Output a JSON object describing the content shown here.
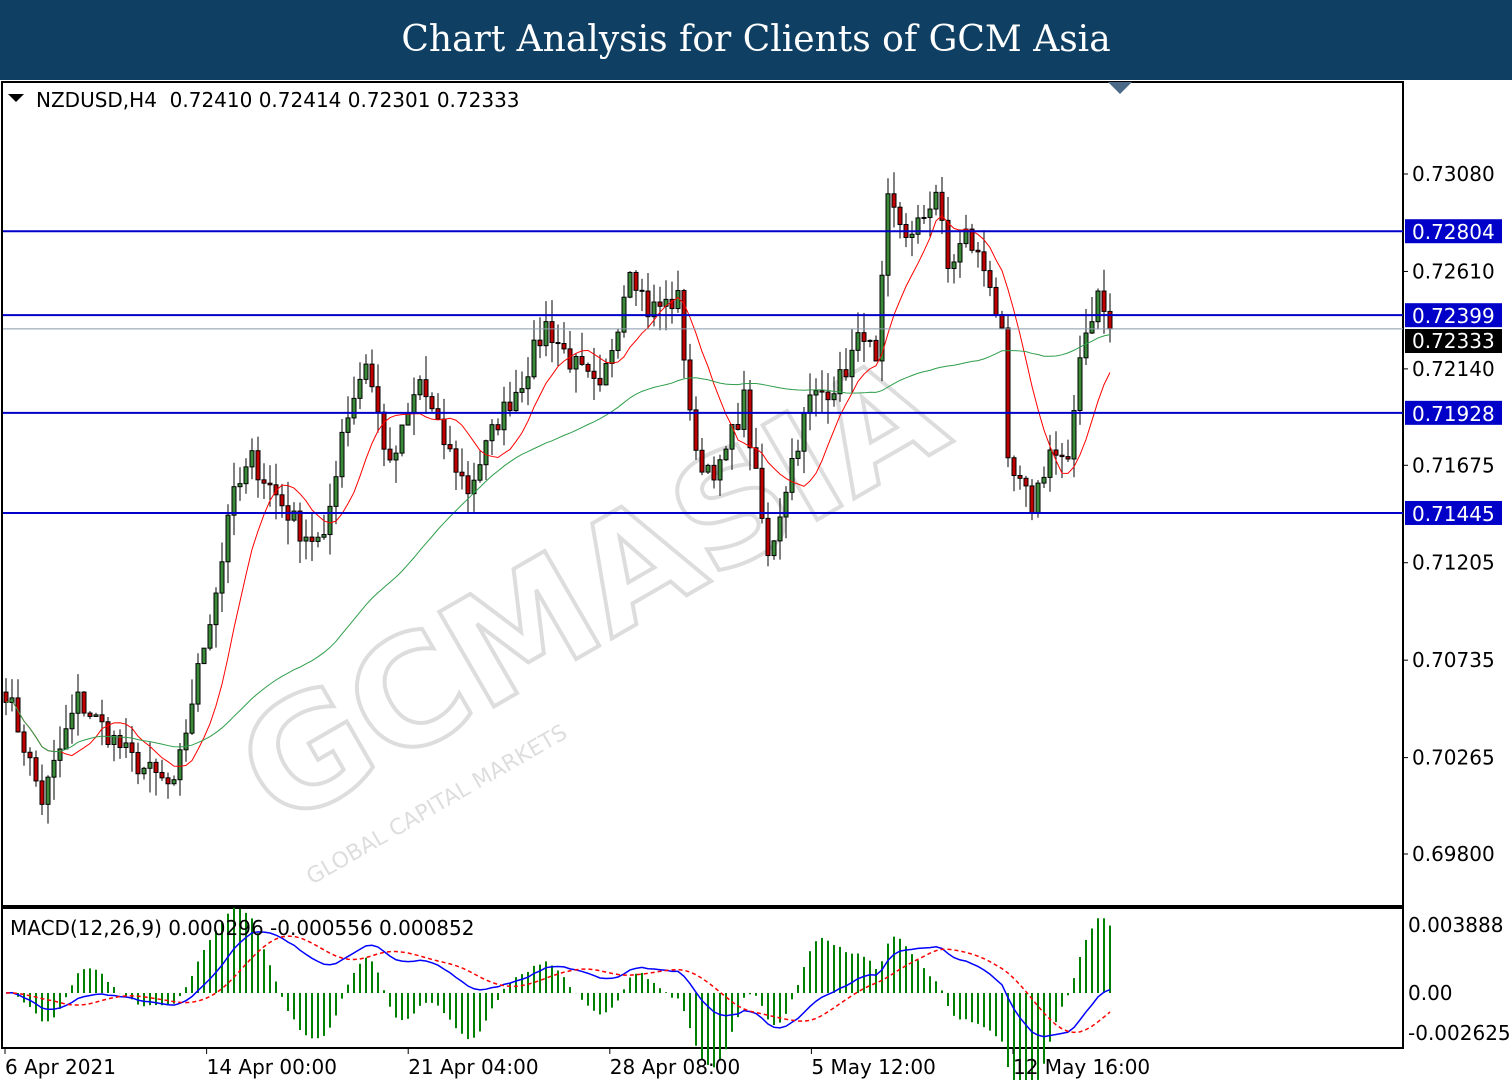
{
  "header": {
    "title": "Chart Analysis for Clients of GCM Asia"
  },
  "watermark": {
    "logo_text": "GCMASIA",
    "logo_sub": "GLOBAL CAPITAL MARKETS"
  },
  "chart_data": [
    {
      "type": "candlestick",
      "symbol_info": "NZDUSD,H4  0.72410 0.72414 0.72301 0.72333",
      "ylim": [
        0.696,
        0.7328
      ],
      "y_ticks": [
        "0.73080",
        "0.72610",
        "0.72140",
        "0.71675",
        "0.71205",
        "0.70735",
        "0.70265",
        "0.69800"
      ],
      "x_ticks": [
        "6 Apr 2021",
        "14 Apr 00:00",
        "21 Apr 04:00",
        "28 Apr 08:00",
        "5 May 12:00",
        "12 May 16:00"
      ],
      "grid": false,
      "current_price": "0.72333",
      "horizontal_levels": [
        {
          "value": "0.72804"
        },
        {
          "value": "0.72399"
        },
        {
          "value": "0.71928"
        },
        {
          "value": "0.71445"
        }
      ],
      "close_keyframes": [
        [
          0,
          0.70591
        ],
        [
          6,
          0.7006
        ],
        [
          12,
          0.70543
        ],
        [
          21,
          0.70253
        ],
        [
          28,
          0.70109
        ],
        [
          31,
          0.70543
        ],
        [
          36,
          0.71218
        ],
        [
          37,
          0.71459
        ],
        [
          41,
          0.717
        ],
        [
          49,
          0.71363
        ],
        [
          53,
          0.7129
        ],
        [
          56,
          0.71845
        ],
        [
          60,
          0.72183
        ],
        [
          64,
          0.71652
        ],
        [
          69,
          0.72086
        ],
        [
          72,
          0.71845
        ],
        [
          77,
          0.71556
        ],
        [
          82,
          0.71893
        ],
        [
          86,
          0.72086
        ],
        [
          90,
          0.72352
        ],
        [
          94,
          0.72183
        ],
        [
          99,
          0.72014
        ],
        [
          102,
          0.72376
        ],
        [
          104,
          0.72656
        ],
        [
          107,
          0.72424
        ],
        [
          112,
          0.72472
        ],
        [
          115,
          0.717
        ],
        [
          119,
          0.71652
        ],
        [
          123,
          0.7199
        ],
        [
          127,
          0.71218
        ],
        [
          131,
          0.717
        ],
        [
          134,
          0.7199
        ],
        [
          139,
          0.72086
        ],
        [
          143,
          0.72328
        ],
        [
          145,
          0.72135
        ],
        [
          147,
          0.7293
        ],
        [
          151,
          0.72762
        ],
        [
          155,
          0.73003
        ],
        [
          157,
          0.72617
        ],
        [
          160,
          0.72786
        ],
        [
          164,
          0.72569
        ],
        [
          166,
          0.72279
        ],
        [
          167,
          0.71652
        ],
        [
          171,
          0.71483
        ],
        [
          174,
          0.71749
        ],
        [
          177,
          0.71652
        ],
        [
          179,
          0.72231
        ],
        [
          182,
          0.72496
        ],
        [
          184,
          0.72333
        ]
      ],
      "series": [
        {
          "type": "ma",
          "color": "#ff0000"
        },
        {
          "type": "ma",
          "color": "#2e9e4a"
        }
      ]
    },
    {
      "type": "macd",
      "title": "MACD(12,26,9) 0.000296 -0.000556 0.000852",
      "y_ticks": [
        "0.003888",
        "0.00",
        "-0.002625"
      ],
      "colors": {
        "macd": "#0000ff",
        "signal": "#ff0000",
        "histogram": "#008000"
      }
    }
  ],
  "colors": {
    "level_line": "#0000c8",
    "tag_bg": "#0000c8"
  }
}
